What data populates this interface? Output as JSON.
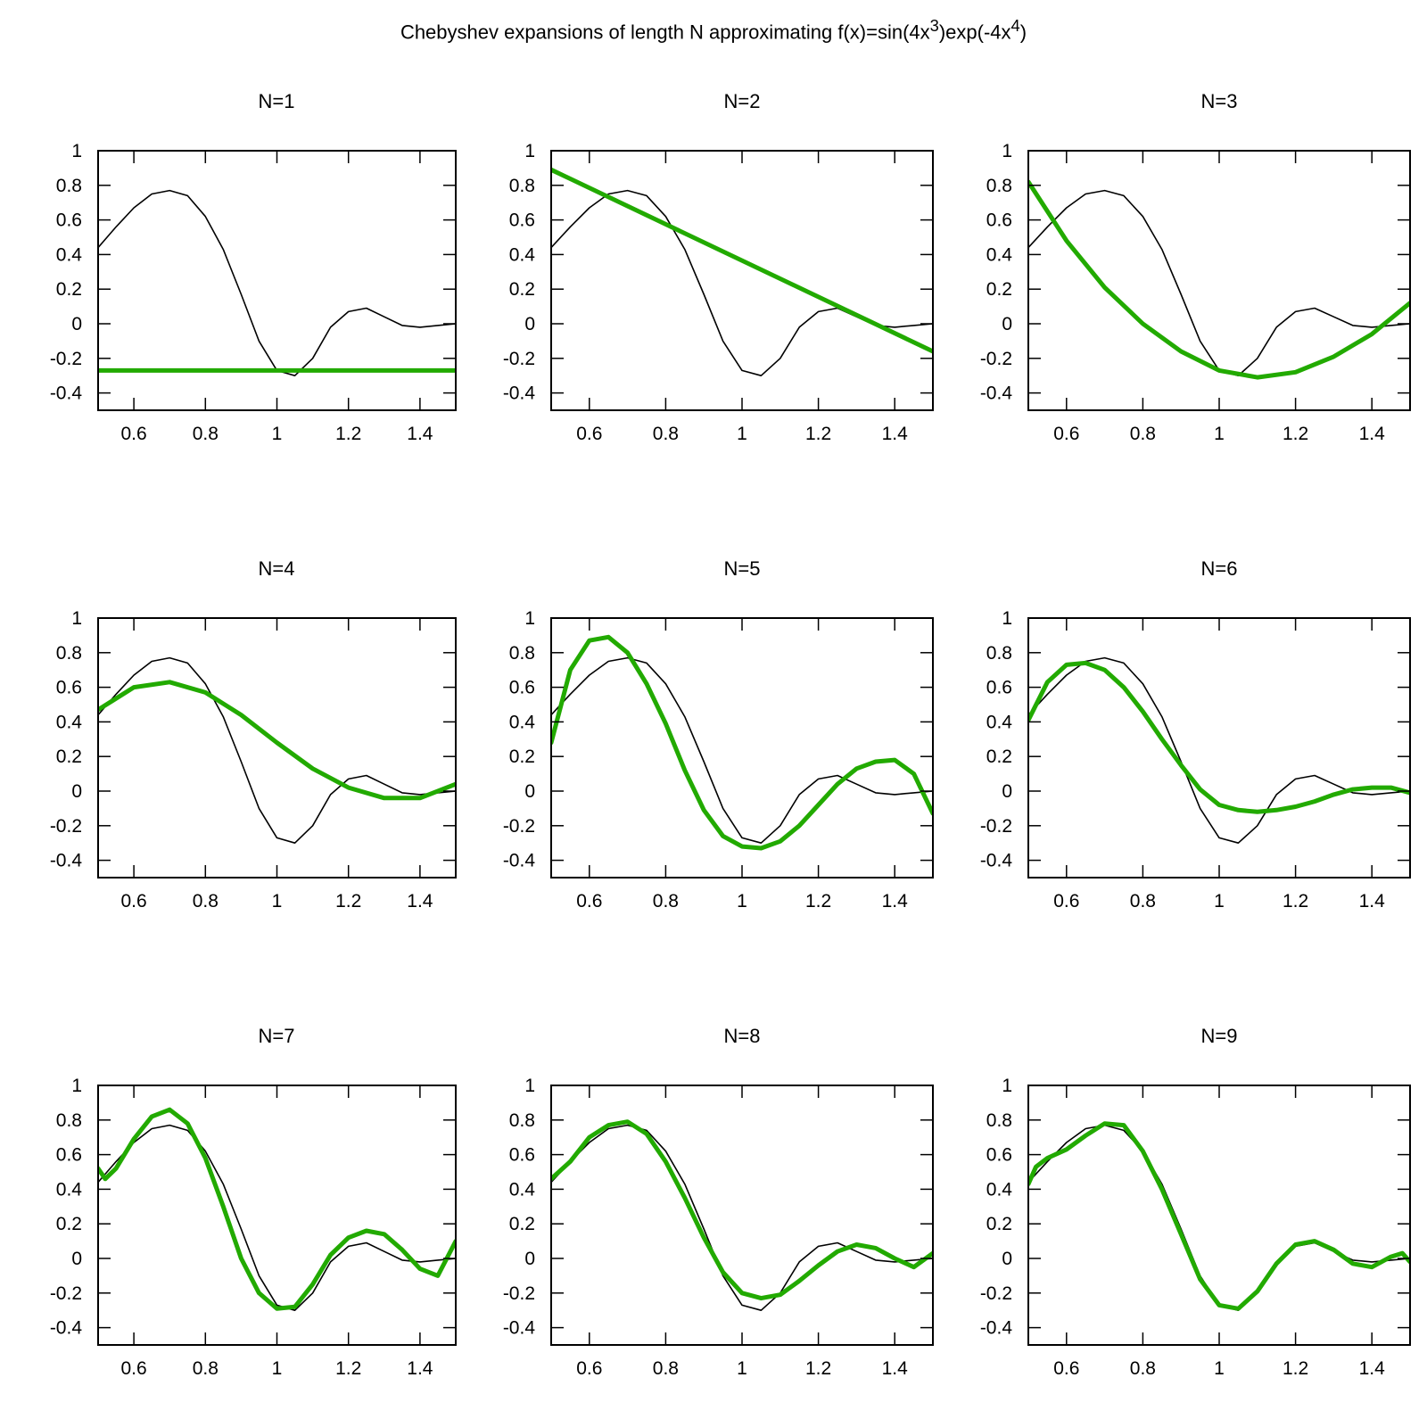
{
  "figure": {
    "title_main": "Chebyshev expansions of length N approximating f(x)=sin(4x",
    "title_sup1": "3",
    "title_mid": ")exp(-4x",
    "title_sup2": "4",
    "title_end": ")"
  },
  "colors": {
    "exact": "#000000",
    "approx": "#22aa00",
    "axes": "#000000"
  },
  "chart_data": [
    {
      "type": "line",
      "title": "N=1",
      "xlim": [
        0.5,
        1.5
      ],
      "ylim": [
        -0.5,
        1
      ],
      "xticks": [
        "0.6",
        "0.8",
        "1",
        "1.2",
        "1.4"
      ],
      "yticks": [
        "1",
        "0.8",
        "0.6",
        "0.4",
        "0.2",
        "0",
        "-0.2",
        "-0.4"
      ],
      "series": [
        {
          "x": [
            0.5,
            0.55,
            0.6,
            0.65,
            0.7,
            0.75,
            0.8,
            0.85,
            0.9,
            0.95,
            1.0,
            1.05,
            1.1,
            1.15,
            1.2,
            1.25,
            1.3,
            1.35,
            1.4,
            1.45,
            1.5
          ],
          "values": [
            0.44,
            0.56,
            0.67,
            0.75,
            0.77,
            0.74,
            0.62,
            0.43,
            0.17,
            -0.1,
            -0.27,
            -0.3,
            -0.2,
            -0.02,
            0.07,
            0.09,
            0.04,
            -0.01,
            -0.02,
            -0.01,
            0.0
          ]
        },
        {
          "x": [
            0.5,
            1.5
          ],
          "values": [
            -0.27,
            -0.27
          ]
        }
      ]
    },
    {
      "type": "line",
      "title": "N=2",
      "xlim": [
        0.5,
        1.5
      ],
      "ylim": [
        -0.5,
        1
      ],
      "xticks": [
        "0.6",
        "0.8",
        "1",
        "1.2",
        "1.4"
      ],
      "yticks": [
        "1",
        "0.8",
        "0.6",
        "0.4",
        "0.2",
        "0",
        "-0.2",
        "-0.4"
      ],
      "series": [
        {
          "x": [
            0.5,
            0.55,
            0.6,
            0.65,
            0.7,
            0.75,
            0.8,
            0.85,
            0.9,
            0.95,
            1.0,
            1.05,
            1.1,
            1.15,
            1.2,
            1.25,
            1.3,
            1.35,
            1.4,
            1.45,
            1.5
          ],
          "values": [
            0.44,
            0.56,
            0.67,
            0.75,
            0.77,
            0.74,
            0.62,
            0.43,
            0.17,
            -0.1,
            -0.27,
            -0.3,
            -0.2,
            -0.02,
            0.07,
            0.09,
            0.04,
            -0.01,
            -0.02,
            -0.01,
            0.0
          ]
        },
        {
          "x": [
            0.5,
            1.5
          ],
          "values": [
            0.89,
            -0.16
          ]
        }
      ]
    },
    {
      "type": "line",
      "title": "N=3",
      "xlim": [
        0.5,
        1.5
      ],
      "ylim": [
        -0.5,
        1
      ],
      "xticks": [
        "0.6",
        "0.8",
        "1",
        "1.2",
        "1.4"
      ],
      "yticks": [
        "1",
        "0.8",
        "0.6",
        "0.4",
        "0.2",
        "0",
        "-0.2",
        "-0.4"
      ],
      "series": [
        {
          "x": [
            0.5,
            0.55,
            0.6,
            0.65,
            0.7,
            0.75,
            0.8,
            0.85,
            0.9,
            0.95,
            1.0,
            1.05,
            1.1,
            1.15,
            1.2,
            1.25,
            1.3,
            1.35,
            1.4,
            1.45,
            1.5
          ],
          "values": [
            0.44,
            0.56,
            0.67,
            0.75,
            0.77,
            0.74,
            0.62,
            0.43,
            0.17,
            -0.1,
            -0.27,
            -0.3,
            -0.2,
            -0.02,
            0.07,
            0.09,
            0.04,
            -0.01,
            -0.02,
            -0.01,
            0.0
          ]
        },
        {
          "x": [
            0.5,
            0.6,
            0.7,
            0.8,
            0.9,
            1.0,
            1.1,
            1.2,
            1.3,
            1.4,
            1.5
          ],
          "values": [
            0.82,
            0.48,
            0.21,
            0.0,
            -0.16,
            -0.27,
            -0.31,
            -0.28,
            -0.19,
            -0.06,
            0.12
          ]
        }
      ]
    },
    {
      "type": "line",
      "title": "N=4",
      "xlim": [
        0.5,
        1.5
      ],
      "ylim": [
        -0.5,
        1
      ],
      "xticks": [
        "0.6",
        "0.8",
        "1",
        "1.2",
        "1.4"
      ],
      "yticks": [
        "1",
        "0.8",
        "0.6",
        "0.4",
        "0.2",
        "0",
        "-0.2",
        "-0.4"
      ],
      "series": [
        {
          "x": [
            0.5,
            0.55,
            0.6,
            0.65,
            0.7,
            0.75,
            0.8,
            0.85,
            0.9,
            0.95,
            1.0,
            1.05,
            1.1,
            1.15,
            1.2,
            1.25,
            1.3,
            1.35,
            1.4,
            1.45,
            1.5
          ],
          "values": [
            0.44,
            0.56,
            0.67,
            0.75,
            0.77,
            0.74,
            0.62,
            0.43,
            0.17,
            -0.1,
            -0.27,
            -0.3,
            -0.2,
            -0.02,
            0.07,
            0.09,
            0.04,
            -0.01,
            -0.02,
            -0.01,
            0.0
          ]
        },
        {
          "x": [
            0.5,
            0.6,
            0.7,
            0.8,
            0.9,
            1.0,
            1.1,
            1.2,
            1.3,
            1.4,
            1.5
          ],
          "values": [
            0.47,
            0.6,
            0.63,
            0.57,
            0.44,
            0.28,
            0.13,
            0.02,
            -0.04,
            -0.04,
            0.04
          ]
        }
      ]
    },
    {
      "type": "line",
      "title": "N=5",
      "xlim": [
        0.5,
        1.5
      ],
      "ylim": [
        -0.5,
        1
      ],
      "xticks": [
        "0.6",
        "0.8",
        "1",
        "1.2",
        "1.4"
      ],
      "yticks": [
        "1",
        "0.8",
        "0.6",
        "0.4",
        "0.2",
        "0",
        "-0.2",
        "-0.4"
      ],
      "series": [
        {
          "x": [
            0.5,
            0.55,
            0.6,
            0.65,
            0.7,
            0.75,
            0.8,
            0.85,
            0.9,
            0.95,
            1.0,
            1.05,
            1.1,
            1.15,
            1.2,
            1.25,
            1.3,
            1.35,
            1.4,
            1.45,
            1.5
          ],
          "values": [
            0.44,
            0.56,
            0.67,
            0.75,
            0.77,
            0.74,
            0.62,
            0.43,
            0.17,
            -0.1,
            -0.27,
            -0.3,
            -0.2,
            -0.02,
            0.07,
            0.09,
            0.04,
            -0.01,
            -0.02,
            -0.01,
            0.0
          ]
        },
        {
          "x": [
            0.5,
            0.55,
            0.6,
            0.65,
            0.7,
            0.75,
            0.8,
            0.85,
            0.9,
            0.95,
            1.0,
            1.05,
            1.1,
            1.15,
            1.2,
            1.25,
            1.3,
            1.35,
            1.4,
            1.45,
            1.5
          ],
          "values": [
            0.28,
            0.7,
            0.87,
            0.89,
            0.8,
            0.62,
            0.39,
            0.12,
            -0.11,
            -0.26,
            -0.32,
            -0.33,
            -0.29,
            -0.2,
            -0.08,
            0.04,
            0.13,
            0.17,
            0.18,
            0.1,
            -0.13
          ]
        }
      ]
    },
    {
      "type": "line",
      "title": "N=6",
      "xlim": [
        0.5,
        1.5
      ],
      "ylim": [
        -0.5,
        1
      ],
      "xticks": [
        "0.6",
        "0.8",
        "1",
        "1.2",
        "1.4"
      ],
      "yticks": [
        "1",
        "0.8",
        "0.6",
        "0.4",
        "0.2",
        "0",
        "-0.2",
        "-0.4"
      ],
      "series": [
        {
          "x": [
            0.5,
            0.55,
            0.6,
            0.65,
            0.7,
            0.75,
            0.8,
            0.85,
            0.9,
            0.95,
            1.0,
            1.05,
            1.1,
            1.15,
            1.2,
            1.25,
            1.3,
            1.35,
            1.4,
            1.45,
            1.5
          ],
          "values": [
            0.44,
            0.56,
            0.67,
            0.75,
            0.77,
            0.74,
            0.62,
            0.43,
            0.17,
            -0.1,
            -0.27,
            -0.3,
            -0.2,
            -0.02,
            0.07,
            0.09,
            0.04,
            -0.01,
            -0.02,
            -0.01,
            0.0
          ]
        },
        {
          "x": [
            0.5,
            0.55,
            0.6,
            0.65,
            0.7,
            0.75,
            0.8,
            0.85,
            0.9,
            0.95,
            1.0,
            1.05,
            1.1,
            1.15,
            1.2,
            1.25,
            1.3,
            1.35,
            1.4,
            1.45,
            1.5
          ],
          "values": [
            0.41,
            0.63,
            0.73,
            0.74,
            0.7,
            0.6,
            0.46,
            0.3,
            0.15,
            0.01,
            -0.08,
            -0.11,
            -0.12,
            -0.11,
            -0.09,
            -0.06,
            -0.02,
            0.01,
            0.02,
            0.02,
            -0.01
          ]
        }
      ]
    },
    {
      "type": "line",
      "title": "N=7",
      "xlim": [
        0.5,
        1.5
      ],
      "ylim": [
        -0.5,
        1
      ],
      "xticks": [
        "0.6",
        "0.8",
        "1",
        "1.2",
        "1.4"
      ],
      "yticks": [
        "1",
        "0.8",
        "0.6",
        "0.4",
        "0.2",
        "0",
        "-0.2",
        "-0.4"
      ],
      "series": [
        {
          "x": [
            0.5,
            0.55,
            0.6,
            0.65,
            0.7,
            0.75,
            0.8,
            0.85,
            0.9,
            0.95,
            1.0,
            1.05,
            1.1,
            1.15,
            1.2,
            1.25,
            1.3,
            1.35,
            1.4,
            1.45,
            1.5
          ],
          "values": [
            0.44,
            0.56,
            0.67,
            0.75,
            0.77,
            0.74,
            0.62,
            0.43,
            0.17,
            -0.1,
            -0.27,
            -0.3,
            -0.2,
            -0.02,
            0.07,
            0.09,
            0.04,
            -0.01,
            -0.02,
            -0.01,
            0.0
          ]
        },
        {
          "x": [
            0.5,
            0.52,
            0.55,
            0.6,
            0.65,
            0.7,
            0.75,
            0.8,
            0.85,
            0.9,
            0.95,
            1.0,
            1.05,
            1.1,
            1.15,
            1.2,
            1.25,
            1.3,
            1.35,
            1.4,
            1.45,
            1.5
          ],
          "values": [
            0.52,
            0.46,
            0.52,
            0.69,
            0.82,
            0.86,
            0.78,
            0.58,
            0.3,
            0.0,
            -0.2,
            -0.29,
            -0.28,
            -0.15,
            0.02,
            0.12,
            0.16,
            0.14,
            0.05,
            -0.06,
            -0.1,
            0.1
          ]
        }
      ]
    },
    {
      "type": "line",
      "title": "N=8",
      "xlim": [
        0.5,
        1.5
      ],
      "ylim": [
        -0.5,
        1
      ],
      "xticks": [
        "0.6",
        "0.8",
        "1",
        "1.2",
        "1.4"
      ],
      "yticks": [
        "1",
        "0.8",
        "0.6",
        "0.4",
        "0.2",
        "0",
        "-0.2",
        "-0.4"
      ],
      "series": [
        {
          "x": [
            0.5,
            0.55,
            0.6,
            0.65,
            0.7,
            0.75,
            0.8,
            0.85,
            0.9,
            0.95,
            1.0,
            1.05,
            1.1,
            1.15,
            1.2,
            1.25,
            1.3,
            1.35,
            1.4,
            1.45,
            1.5
          ],
          "values": [
            0.44,
            0.56,
            0.67,
            0.75,
            0.77,
            0.74,
            0.62,
            0.43,
            0.17,
            -0.1,
            -0.27,
            -0.3,
            -0.2,
            -0.02,
            0.07,
            0.09,
            0.04,
            -0.01,
            -0.02,
            -0.01,
            0.0
          ]
        },
        {
          "x": [
            0.5,
            0.55,
            0.6,
            0.65,
            0.7,
            0.75,
            0.8,
            0.85,
            0.9,
            0.95,
            1.0,
            1.05,
            1.1,
            1.15,
            1.2,
            1.25,
            1.3,
            1.35,
            1.4,
            1.45,
            1.5
          ],
          "values": [
            0.46,
            0.56,
            0.7,
            0.77,
            0.79,
            0.72,
            0.56,
            0.35,
            0.12,
            -0.08,
            -0.2,
            -0.23,
            -0.21,
            -0.13,
            -0.04,
            0.04,
            0.08,
            0.06,
            0.0,
            -0.05,
            0.03
          ]
        }
      ]
    },
    {
      "type": "line",
      "title": "N=9",
      "xlim": [
        0.5,
        1.5
      ],
      "ylim": [
        -0.5,
        1
      ],
      "xticks": [
        "0.6",
        "0.8",
        "1",
        "1.2",
        "1.4"
      ],
      "yticks": [
        "1",
        "0.8",
        "0.6",
        "0.4",
        "0.2",
        "0",
        "-0.2",
        "-0.4"
      ],
      "series": [
        {
          "x": [
            0.5,
            0.55,
            0.6,
            0.65,
            0.7,
            0.75,
            0.8,
            0.85,
            0.9,
            0.95,
            1.0,
            1.05,
            1.1,
            1.15,
            1.2,
            1.25,
            1.3,
            1.35,
            1.4,
            1.45,
            1.5
          ],
          "values": [
            0.44,
            0.56,
            0.67,
            0.75,
            0.77,
            0.74,
            0.62,
            0.43,
            0.17,
            -0.1,
            -0.27,
            -0.3,
            -0.2,
            -0.02,
            0.07,
            0.09,
            0.04,
            -0.01,
            -0.02,
            -0.01,
            0.0
          ]
        },
        {
          "x": [
            0.5,
            0.52,
            0.55,
            0.6,
            0.65,
            0.7,
            0.75,
            0.8,
            0.85,
            0.9,
            0.95,
            1.0,
            1.05,
            1.1,
            1.15,
            1.2,
            1.25,
            1.3,
            1.35,
            1.4,
            1.45,
            1.48,
            1.5
          ],
          "values": [
            0.43,
            0.53,
            0.58,
            0.63,
            0.71,
            0.78,
            0.77,
            0.62,
            0.4,
            0.14,
            -0.12,
            -0.27,
            -0.29,
            -0.19,
            -0.03,
            0.08,
            0.1,
            0.05,
            -0.03,
            -0.05,
            0.01,
            0.03,
            -0.02
          ]
        }
      ]
    }
  ]
}
